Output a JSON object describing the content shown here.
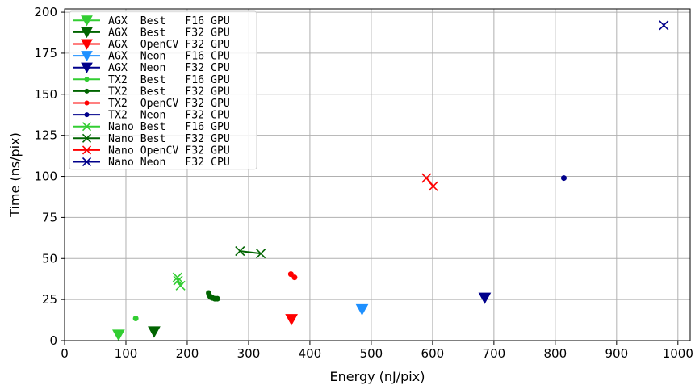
{
  "chart_data": {
    "type": "scatter",
    "xlabel": "Energy (nJ/pix)",
    "ylabel": "Time (ns/pix)",
    "xlim": [
      0,
      1020
    ],
    "ylim": [
      0,
      202
    ],
    "xticks": [
      0,
      100,
      200,
      300,
      400,
      500,
      600,
      700,
      800,
      900,
      1000
    ],
    "yticks": [
      0,
      25,
      50,
      75,
      100,
      125,
      150,
      175,
      200
    ],
    "grid": true,
    "legend_position": "top-left",
    "series": [
      {
        "name": "AGX  Best   F16 GPU",
        "color": "#32cd32",
        "marker": "triangle-down",
        "points": [
          [
            88,
            3.5
          ]
        ]
      },
      {
        "name": "AGX  Best   F32 GPU",
        "color": "#006400",
        "marker": "triangle-down",
        "points": [
          [
            146,
            5.5
          ]
        ]
      },
      {
        "name": "AGX  OpenCV F32 GPU",
        "color": "#ff0000",
        "marker": "triangle-down",
        "points": [
          [
            370,
            13
          ]
        ]
      },
      {
        "name": "AGX  Neon   F16 CPU",
        "color": "#1e90ff",
        "marker": "triangle-down",
        "points": [
          [
            485,
            19
          ]
        ]
      },
      {
        "name": "AGX  Neon   F32 CPU",
        "color": "#00008b",
        "marker": "triangle-down",
        "points": [
          [
            685,
            26
          ]
        ]
      },
      {
        "name": "TX2  Best   F16 GPU",
        "color": "#32cd32",
        "marker": "dot",
        "points": [
          [
            116,
            13.5
          ]
        ]
      },
      {
        "name": "TX2  Best   F32 GPU",
        "color": "#006400",
        "marker": "dot",
        "points": [
          [
            235,
            29
          ],
          [
            236,
            27.5
          ],
          [
            238,
            26.5
          ],
          [
            241,
            26
          ],
          [
            245,
            25.5
          ],
          [
            249,
            25.5
          ]
        ]
      },
      {
        "name": "TX2  OpenCV F32 GPU",
        "color": "#ff0000",
        "marker": "dot",
        "points": [
          [
            369,
            40.5
          ],
          [
            375,
            38.5
          ]
        ]
      },
      {
        "name": "TX2  Neon   F32 CPU",
        "color": "#00008b",
        "marker": "dot",
        "points": [
          [
            814,
            99
          ]
        ]
      },
      {
        "name": "Nano Best   F16 GPU",
        "color": "#32cd32",
        "marker": "x",
        "points": [
          [
            184,
            38.5
          ],
          [
            185,
            36.5
          ],
          [
            189,
            33.5
          ]
        ]
      },
      {
        "name": "Nano Best   F32 GPU",
        "color": "#006400",
        "marker": "x",
        "points": [
          [
            286,
            54.5
          ],
          [
            320,
            53
          ]
        ]
      },
      {
        "name": "Nano OpenCV F32 GPU",
        "color": "#ff0000",
        "marker": "x",
        "points": [
          [
            590,
            99
          ],
          [
            601,
            94
          ]
        ]
      },
      {
        "name": "Nano Neon   F32 CPU",
        "color": "#00008b",
        "marker": "x",
        "points": [
          [
            977,
            192
          ]
        ]
      }
    ]
  }
}
